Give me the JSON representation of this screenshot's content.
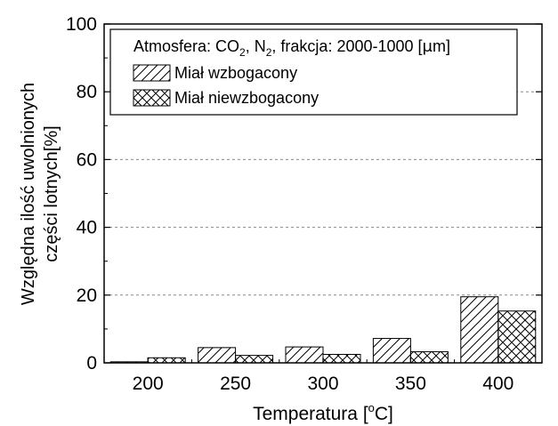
{
  "chart_data": {
    "type": "bar",
    "categories": [
      "200",
      "250",
      "300",
      "350",
      "400"
    ],
    "series": [
      {
        "name": "Miał wzbogacony",
        "values": [
          0.3,
          4.5,
          4.7,
          7.2,
          19.5
        ],
        "pattern": "diagonal-hatch"
      },
      {
        "name": "Miał niewzbogacony",
        "values": [
          1.5,
          2.2,
          2.5,
          3.3,
          15.3
        ],
        "pattern": "cross-hatch"
      }
    ],
    "xlabel": {
      "main": "Temperatura [",
      "sup": "o",
      "tail": "C]"
    },
    "ylabel": {
      "line1": "Względna ilość uwolnionych",
      "line2": "części lotnych[%]"
    },
    "ylim": [
      0,
      100
    ],
    "yticks": [
      "0",
      "20",
      "40",
      "60",
      "80",
      "100"
    ],
    "grid": {
      "horizontal": true,
      "style": "dashed",
      "levels": [
        20,
        40,
        60,
        80
      ]
    },
    "legend": {
      "placement": "top-left",
      "title_parts": [
        {
          "t": "Atmosfera: CO"
        },
        {
          "t": "2",
          "sub": true
        },
        {
          "t": ", N"
        },
        {
          "t": "2",
          "sub": true
        },
        {
          "t": ", frakcja: 2000-1000 ["
        },
        {
          "t": "μ",
          "sym": true
        },
        {
          "t": "m]"
        }
      ]
    },
    "colors": {
      "bar_fill": "#ffffff",
      "stroke": "#000000",
      "grid": "#888888"
    }
  }
}
